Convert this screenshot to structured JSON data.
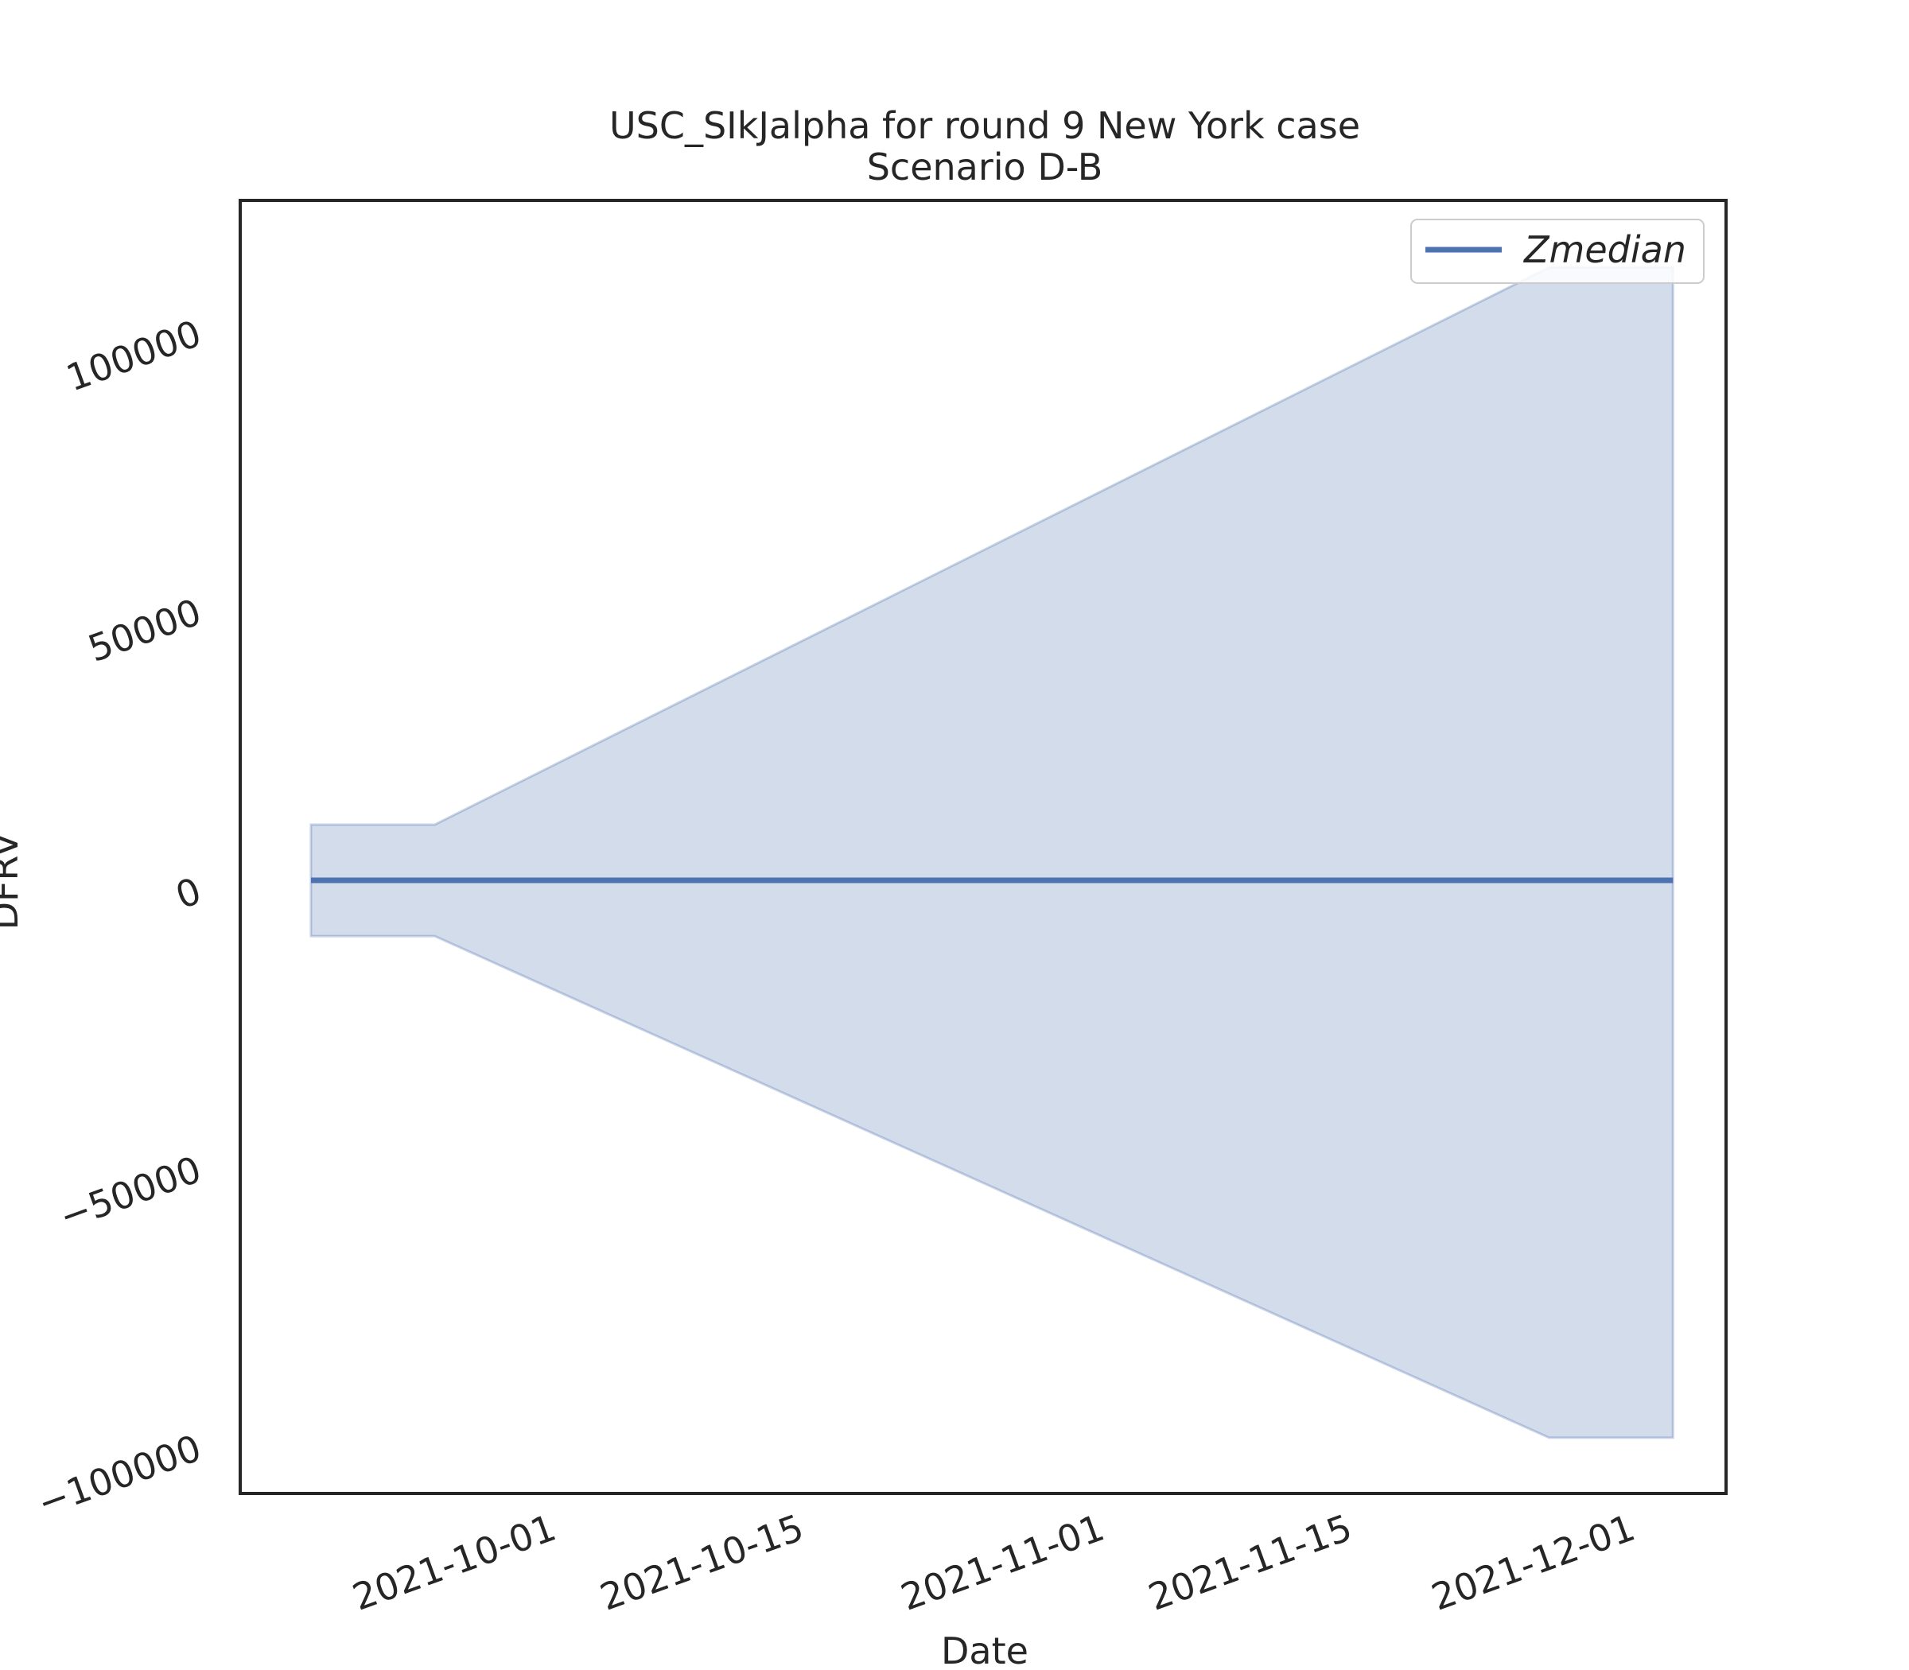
{
  "chart_data": {
    "type": "line",
    "title": "USC_SIkJalpha for round 9 New York case",
    "subtitle": "Scenario D-B",
    "xlabel": "Date",
    "ylabel": "DFRV",
    "x_ticks": [
      "2021-10-01",
      "2021-10-15",
      "2021-11-01",
      "2021-11-15",
      "2021-12-01"
    ],
    "y_ticks": [
      -100000,
      -50000,
      0,
      50000,
      100000
    ],
    "y_tick_labels": [
      "−100000",
      "−50000",
      "0",
      "50000",
      "100000"
    ],
    "xlim": [
      "2021-09-14",
      "2021-12-07"
    ],
    "ylim": [
      -110000,
      122000
    ],
    "grid": false,
    "legend_position": "top-right",
    "series": [
      {
        "name": "Zmedian",
        "x": [
          "2021-09-18",
          "2021-12-04"
        ],
        "y": [
          0,
          0
        ],
        "color": "#4c72b0"
      }
    ],
    "band": {
      "x": [
        "2021-09-18",
        "2021-09-25",
        "2021-11-27",
        "2021-12-04"
      ],
      "upper": [
        10000,
        10000,
        110000,
        110000
      ],
      "lower": [
        -10000,
        -10000,
        -100000,
        -100000
      ],
      "color": "#4c72b0",
      "opacity": 0.25
    }
  }
}
